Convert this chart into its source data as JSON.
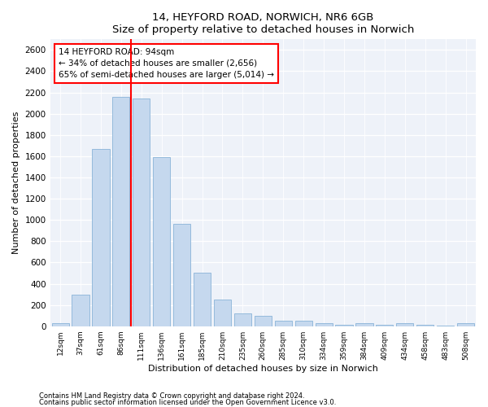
{
  "title": "14, HEYFORD ROAD, NORWICH, NR6 6GB",
  "subtitle": "Size of property relative to detached houses in Norwich",
  "xlabel": "Distribution of detached houses by size in Norwich",
  "ylabel": "Number of detached properties",
  "footnote1": "Contains HM Land Registry data © Crown copyright and database right 2024.",
  "footnote2": "Contains public sector information licensed under the Open Government Licence v3.0.",
  "annotation_line1": "14 HEYFORD ROAD: 94sqm",
  "annotation_line2": "← 34% of detached houses are smaller (2,656)",
  "annotation_line3": "65% of semi-detached houses are larger (5,014) →",
  "property_size_bin": 3,
  "bar_color": "#c5d8ee",
  "bar_edge_color": "#8ab4d8",
  "vline_color": "red",
  "background_color": "#eef2f9",
  "bin_edges": [
    12,
    37,
    61,
    86,
    111,
    136,
    161,
    185,
    210,
    235,
    260,
    285,
    310,
    334,
    359,
    384,
    409,
    434,
    458,
    483,
    508
  ],
  "bin_labels": [
    "12sqm",
    "37sqm",
    "61sqm",
    "86sqm",
    "111sqm",
    "136sqm",
    "161sqm",
    "185sqm",
    "210sqm",
    "235sqm",
    "260sqm",
    "285sqm",
    "310sqm",
    "334sqm",
    "359sqm",
    "384sqm",
    "409sqm",
    "434sqm",
    "458sqm",
    "483sqm",
    "508sqm"
  ],
  "values": [
    25,
    300,
    1670,
    2160,
    2140,
    1590,
    960,
    500,
    250,
    120,
    100,
    50,
    50,
    30,
    15,
    30,
    10,
    25,
    10,
    5,
    25
  ],
  "ylim": [
    0,
    2700
  ],
  "yticks": [
    0,
    200,
    400,
    600,
    800,
    1000,
    1200,
    1400,
    1600,
    1800,
    2000,
    2200,
    2400,
    2600
  ]
}
